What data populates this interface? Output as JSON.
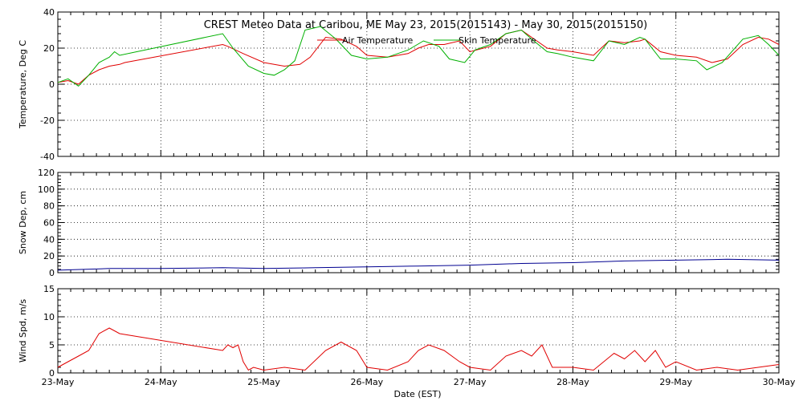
{
  "chart_data": {
    "type": "line",
    "title": "CREST Meteo Data at Caribou, ME   May 23, 2015(2015143) - May 30, 2015(2015150)",
    "xlabel": "Date (EST)",
    "x_ticks": [
      "23-May",
      "24-May",
      "25-May",
      "26-May",
      "27-May",
      "28-May",
      "29-May",
      "30-May"
    ],
    "xlim": [
      0,
      7
    ],
    "colors": {
      "air": "#e00000",
      "skin": "#00b000",
      "snow": "#000090",
      "wind": "#e00000"
    },
    "panels": [
      {
        "ylabel": "Temperature, Deg C",
        "ylim": [
          -40,
          40
        ],
        "yticks": [
          -40,
          -20,
          0,
          20,
          40
        ],
        "legend": "top-center",
        "series": [
          {
            "name": "Air Temperature",
            "color": "#e00000",
            "x": [
              0,
              0.1,
              0.2,
              0.3,
              0.4,
              0.5,
              0.6,
              0.65,
              1.6,
              1.65,
              1.8,
              2.0,
              2.2,
              2.35,
              2.45,
              2.6,
              2.75,
              2.9,
              3.0,
              3.2,
              3.4,
              3.5,
              3.6,
              3.75,
              3.9,
              4.0,
              4.2,
              4.35,
              4.5,
              4.6,
              4.75,
              4.85,
              5.0,
              5.2,
              5.35,
              5.5,
              5.65,
              5.7,
              5.85,
              6.0,
              6.2,
              6.35,
              6.5,
              6.65,
              6.8,
              6.9,
              7.0
            ],
            "y": [
              1,
              2,
              0,
              5,
              8,
              10,
              11,
              12,
              22,
              21,
              17,
              12,
              10,
              11,
              15,
              26,
              25,
              21,
              16,
              15,
              17,
              20,
              22,
              22,
              24,
              18,
              21,
              28,
              30,
              26,
              20,
              19,
              18,
              16,
              24,
              23,
              24,
              25,
              18,
              16,
              15,
              12,
              14,
              22,
              26,
              25,
              22
            ]
          },
          {
            "name": "Skin Temperature",
            "color": "#00b000",
            "x": [
              0,
              0.1,
              0.2,
              0.3,
              0.4,
              0.5,
              0.55,
              0.6,
              1.6,
              1.7,
              1.85,
              2.0,
              2.1,
              2.2,
              2.3,
              2.4,
              2.55,
              2.7,
              2.85,
              3.0,
              3.2,
              3.4,
              3.55,
              3.7,
              3.8,
              3.95,
              4.05,
              4.2,
              4.35,
              4.5,
              4.6,
              4.75,
              4.85,
              5.0,
              5.2,
              5.35,
              5.5,
              5.65,
              5.7,
              5.85,
              6.0,
              6.2,
              6.3,
              6.45,
              6.65,
              6.8,
              6.9,
              7.0
            ],
            "y": [
              1,
              3,
              -1,
              5,
              12,
              15,
              18,
              16,
              28,
              20,
              10,
              6,
              5,
              8,
              13,
              30,
              32,
              25,
              16,
              14,
              15,
              19,
              24,
              21,
              14,
              12,
              19,
              22,
              28,
              30,
              25,
              18,
              17,
              15,
              13,
              24,
              22,
              26,
              25,
              14,
              14,
              13,
              8,
              12,
              25,
              27,
              22,
              16
            ]
          }
        ]
      },
      {
        "ylabel": "Snow Dep, cm",
        "ylim": [
          0,
          120
        ],
        "yticks": [
          0,
          20,
          40,
          60,
          80,
          100,
          120
        ],
        "series": [
          {
            "name": "",
            "color": "#000090",
            "x": [
              0,
              0.5,
              1.0,
              1.6,
              2.0,
              2.5,
              3.0,
              3.5,
              4.0,
              4.5,
              5.0,
              5.5,
              6.0,
              6.5,
              7.0
            ],
            "y": [
              3,
              5,
              5,
              6,
              5,
              6,
              7,
              8,
              9,
              11,
              12,
              14,
              15,
              16,
              15
            ]
          }
        ]
      },
      {
        "ylabel": "Wind Spd, m/s",
        "ylim": [
          0,
          15
        ],
        "yticks": [
          0,
          5,
          10,
          15
        ],
        "series": [
          {
            "name": "",
            "color": "#e00000",
            "x": [
              0,
              0.1,
              0.2,
              0.3,
              0.4,
              0.5,
              0.55,
              0.6,
              1.6,
              1.65,
              1.7,
              1.75,
              1.8,
              1.85,
              1.9,
              2.0,
              2.2,
              2.4,
              2.6,
              2.75,
              2.9,
              3.0,
              3.2,
              3.4,
              3.5,
              3.6,
              3.75,
              3.9,
              4.0,
              4.2,
              4.35,
              4.5,
              4.6,
              4.7,
              4.8,
              5.0,
              5.2,
              5.4,
              5.5,
              5.6,
              5.7,
              5.8,
              5.9,
              6.0,
              6.2,
              6.4,
              6.6,
              6.8,
              7.0
            ],
            "y": [
              1,
              2,
              3,
              4,
              7,
              8,
              7.5,
              7,
              4,
              5,
              4.5,
              5,
              2,
              0.5,
              1,
              0.5,
              1,
              0.5,
              4,
              5.5,
              4,
              1,
              0.5,
              2,
              4,
              5,
              4,
              2,
              1,
              0.5,
              3,
              4,
              3,
              5,
              1,
              1,
              0.5,
              3.5,
              2.5,
              4,
              2,
              4,
              1,
              2,
              0.5,
              1,
              0.5,
              1,
              1.5
            ]
          }
        ]
      }
    ]
  }
}
